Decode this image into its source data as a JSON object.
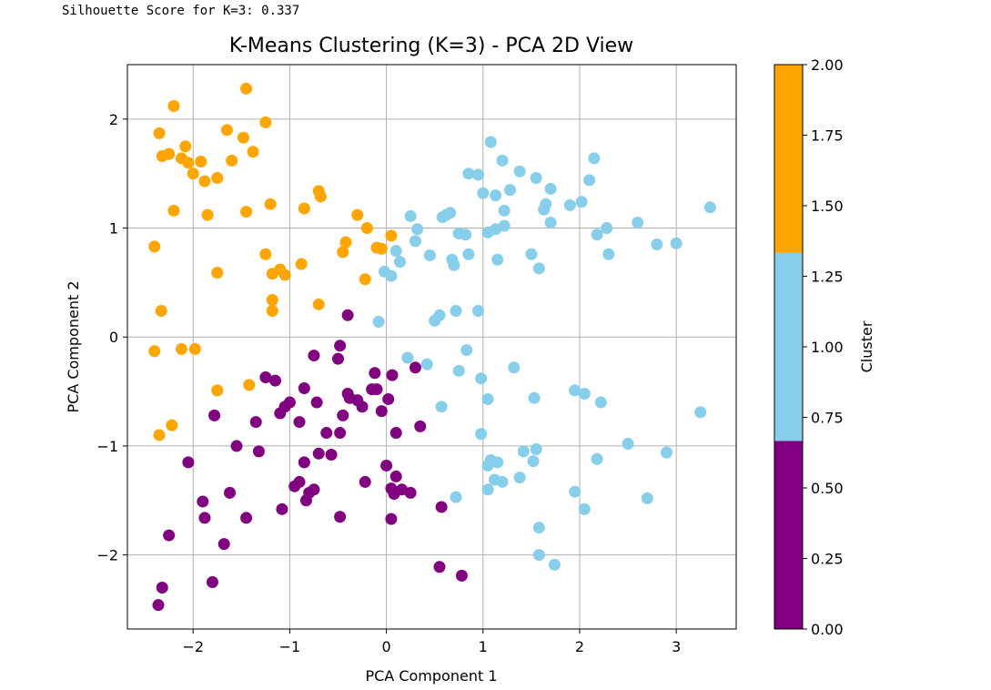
{
  "output_text": "Silhouette Score for K=3: 0.337",
  "chart_data": {
    "type": "scatter",
    "title": "K-Means Clustering (K=3) - PCA 2D View",
    "xlabel": "PCA Component 1",
    "ylabel": "PCA Component 2",
    "xlim": [
      -2.68,
      3.62
    ],
    "ylim": [
      -2.68,
      2.5
    ],
    "xticks": [
      -2,
      -1,
      0,
      1,
      2,
      3
    ],
    "xtick_labels": [
      "−2",
      "−1",
      "0",
      "1",
      "2",
      "3"
    ],
    "yticks": [
      -2,
      -1,
      0,
      1,
      2
    ],
    "ytick_labels": [
      "−2",
      "−1",
      "0",
      "1",
      "2"
    ],
    "grid": true,
    "colorbar": {
      "label": "Cluster",
      "range": [
        0,
        2
      ],
      "ticks": [
        0.0,
        0.25,
        0.5,
        0.75,
        1.0,
        1.25,
        1.5,
        1.75,
        2.0
      ],
      "tick_labels": [
        "0.00",
        "0.25",
        "0.50",
        "0.75",
        "1.00",
        "1.25",
        "1.50",
        "1.75",
        "2.00"
      ],
      "colors": [
        "#800080",
        "#87ceeb",
        "#ffa500"
      ]
    },
    "series": [
      {
        "cluster": 0,
        "color": "#800080",
        "points": [
          [
            -0.72,
            -0.6
          ],
          [
            -0.62,
            -0.88
          ],
          [
            -0.48,
            -0.88
          ],
          [
            -0.45,
            -0.72
          ],
          [
            -0.4,
            -0.52
          ],
          [
            -0.38,
            -0.56
          ],
          [
            -0.3,
            -0.58
          ],
          [
            -0.25,
            -0.64
          ],
          [
            -0.15,
            -0.48
          ],
          [
            -0.1,
            -0.48
          ],
          [
            -0.05,
            -0.68
          ],
          [
            0.02,
            -0.57
          ],
          [
            0.06,
            -0.35
          ],
          [
            0.1,
            -0.88
          ],
          [
            0.3,
            -0.28
          ],
          [
            0.35,
            -0.82
          ],
          [
            -0.48,
            -0.08
          ],
          [
            -0.5,
            -0.2
          ],
          [
            -0.4,
            0.2
          ],
          [
            -0.75,
            -0.17
          ],
          [
            -0.85,
            -0.47
          ],
          [
            -0.9,
            -0.78
          ],
          [
            -1.0,
            -0.6
          ],
          [
            -1.05,
            -0.64
          ],
          [
            -1.1,
            -0.7
          ],
          [
            -1.15,
            -0.4
          ],
          [
            -1.25,
            -0.37
          ],
          [
            -1.35,
            -0.78
          ],
          [
            -1.32,
            -1.05
          ],
          [
            -1.55,
            -1.0
          ],
          [
            -1.62,
            -1.43
          ],
          [
            -1.78,
            -0.72
          ],
          [
            -2.05,
            -1.15
          ],
          [
            -1.9,
            -1.51
          ],
          [
            -1.88,
            -1.66
          ],
          [
            -1.45,
            -1.66
          ],
          [
            -1.68,
            -1.9
          ],
          [
            -1.8,
            -2.25
          ],
          [
            -2.25,
            -1.82
          ],
          [
            -2.32,
            -2.3
          ],
          [
            -2.36,
            -2.46
          ],
          [
            -1.08,
            -1.58
          ],
          [
            -0.95,
            -1.37
          ],
          [
            -0.9,
            -1.33
          ],
          [
            -0.83,
            -1.5
          ],
          [
            -0.8,
            -1.43
          ],
          [
            -0.75,
            -1.4
          ],
          [
            -0.7,
            -1.07
          ],
          [
            -0.57,
            -1.08
          ],
          [
            -0.85,
            -1.15
          ],
          [
            -0.48,
            -1.65
          ],
          [
            -0.22,
            -1.33
          ],
          [
            0.0,
            -1.18
          ],
          [
            0.05,
            -1.39
          ],
          [
            0.08,
            -1.44
          ],
          [
            0.1,
            -1.28
          ],
          [
            0.16,
            -1.4
          ],
          [
            0.25,
            -1.43
          ],
          [
            0.05,
            -1.67
          ],
          [
            0.55,
            -2.11
          ],
          [
            0.57,
            -1.56
          ],
          [
            0.78,
            -2.19
          ],
          [
            -0.12,
            -0.33
          ]
        ]
      },
      {
        "cluster": 1,
        "color": "#87ceeb",
        "points": [
          [
            1.08,
            1.79
          ],
          [
            1.2,
            1.62
          ],
          [
            1.38,
            1.52
          ],
          [
            1.55,
            1.46
          ],
          [
            1.7,
            1.36
          ],
          [
            2.15,
            1.64
          ],
          [
            2.1,
            1.44
          ],
          [
            0.85,
            1.5
          ],
          [
            0.95,
            1.49
          ],
          [
            1.0,
            1.32
          ],
          [
            1.13,
            1.3
          ],
          [
            1.28,
            1.35
          ],
          [
            1.22,
            1.16
          ],
          [
            1.65,
            1.22
          ],
          [
            1.9,
            1.21
          ],
          [
            2.02,
            1.24
          ],
          [
            1.63,
            1.17
          ],
          [
            2.28,
            1.0
          ],
          [
            2.18,
            0.94
          ],
          [
            2.6,
            1.05
          ],
          [
            2.3,
            0.76
          ],
          [
            2.8,
            0.85
          ],
          [
            3.0,
            0.86
          ],
          [
            3.35,
            1.19
          ],
          [
            0.25,
            1.11
          ],
          [
            0.32,
            0.99
          ],
          [
            0.58,
            1.1
          ],
          [
            0.62,
            1.12
          ],
          [
            0.66,
            1.14
          ],
          [
            0.75,
            0.95
          ],
          [
            0.82,
            0.94
          ],
          [
            1.05,
            0.96
          ],
          [
            1.13,
            0.99
          ],
          [
            1.22,
            1.02
          ],
          [
            1.7,
            1.05
          ],
          [
            0.3,
            0.88
          ],
          [
            0.45,
            0.75
          ],
          [
            0.68,
            0.71
          ],
          [
            0.7,
            0.66
          ],
          [
            0.85,
            0.76
          ],
          [
            1.15,
            0.71
          ],
          [
            1.5,
            0.76
          ],
          [
            1.58,
            0.63
          ],
          [
            -0.02,
            0.6
          ],
          [
            0.05,
            0.56
          ],
          [
            0.1,
            0.79
          ],
          [
            0.14,
            0.69
          ],
          [
            0.5,
            0.15
          ],
          [
            0.55,
            0.2
          ],
          [
            0.72,
            0.24
          ],
          [
            0.95,
            0.24
          ],
          [
            -0.08,
            0.14
          ],
          [
            0.22,
            -0.19
          ],
          [
            0.42,
            -0.25
          ],
          [
            0.75,
            -0.31
          ],
          [
            0.83,
            -0.12
          ],
          [
            0.98,
            -0.38
          ],
          [
            1.05,
            -0.57
          ],
          [
            1.32,
            -0.28
          ],
          [
            1.53,
            -0.56
          ],
          [
            1.95,
            -0.49
          ],
          [
            2.05,
            -0.52
          ],
          [
            2.22,
            -0.6
          ],
          [
            0.57,
            -0.64
          ],
          [
            0.98,
            -0.89
          ],
          [
            1.05,
            -1.18
          ],
          [
            1.08,
            -1.13
          ],
          [
            1.12,
            -1.31
          ],
          [
            1.15,
            -1.15
          ],
          [
            1.05,
            -1.4
          ],
          [
            1.2,
            -1.33
          ],
          [
            1.38,
            -1.29
          ],
          [
            1.42,
            -1.05
          ],
          [
            1.55,
            -1.03
          ],
          [
            1.52,
            -1.14
          ],
          [
            1.95,
            -1.42
          ],
          [
            2.05,
            -1.58
          ],
          [
            2.18,
            -1.12
          ],
          [
            2.5,
            -0.98
          ],
          [
            2.9,
            -1.06
          ],
          [
            2.7,
            -1.48
          ],
          [
            3.25,
            -0.69
          ],
          [
            0.72,
            -1.47
          ],
          [
            1.58,
            -1.75
          ],
          [
            1.58,
            -2.0
          ],
          [
            1.74,
            -2.09
          ]
        ]
      },
      {
        "cluster": 2,
        "color": "#ffa500",
        "points": [
          [
            -2.2,
            2.12
          ],
          [
            -1.45,
            2.28
          ],
          [
            -1.25,
            1.97
          ],
          [
            -1.38,
            1.7
          ],
          [
            -1.65,
            1.9
          ],
          [
            -1.48,
            1.83
          ],
          [
            -2.35,
            1.87
          ],
          [
            -2.32,
            1.66
          ],
          [
            -2.25,
            1.68
          ],
          [
            -2.12,
            1.64
          ],
          [
            -2.05,
            1.6
          ],
          [
            -1.92,
            1.61
          ],
          [
            -2.08,
            1.75
          ],
          [
            -2.0,
            1.5
          ],
          [
            -1.88,
            1.43
          ],
          [
            -1.75,
            1.46
          ],
          [
            -1.6,
            1.62
          ],
          [
            -2.2,
            1.16
          ],
          [
            -1.85,
            1.12
          ],
          [
            -1.45,
            1.15
          ],
          [
            -1.2,
            1.22
          ],
          [
            -0.85,
            1.18
          ],
          [
            -0.7,
            1.34
          ],
          [
            -0.68,
            1.29
          ],
          [
            -0.3,
            1.12
          ],
          [
            -0.2,
            1.0
          ],
          [
            -0.42,
            0.87
          ],
          [
            -0.45,
            0.78
          ],
          [
            -0.1,
            0.82
          ],
          [
            -0.05,
            0.81
          ],
          [
            0.05,
            0.93
          ],
          [
            -0.22,
            0.53
          ],
          [
            -1.25,
            0.76
          ],
          [
            -1.18,
            0.58
          ],
          [
            -1.1,
            0.62
          ],
          [
            -1.05,
            0.57
          ],
          [
            -0.88,
            0.67
          ],
          [
            -1.18,
            0.34
          ],
          [
            -1.18,
            0.24
          ],
          [
            -0.7,
            0.3
          ],
          [
            -1.75,
            0.59
          ],
          [
            -2.4,
            0.83
          ],
          [
            -2.33,
            0.24
          ],
          [
            -2.4,
            -0.13
          ],
          [
            -2.12,
            -0.11
          ],
          [
            -1.98,
            -0.11
          ],
          [
            -1.42,
            -0.44
          ],
          [
            -1.75,
            -0.49
          ],
          [
            -2.22,
            -0.81
          ],
          [
            -2.35,
            -0.9
          ]
        ]
      }
    ]
  }
}
